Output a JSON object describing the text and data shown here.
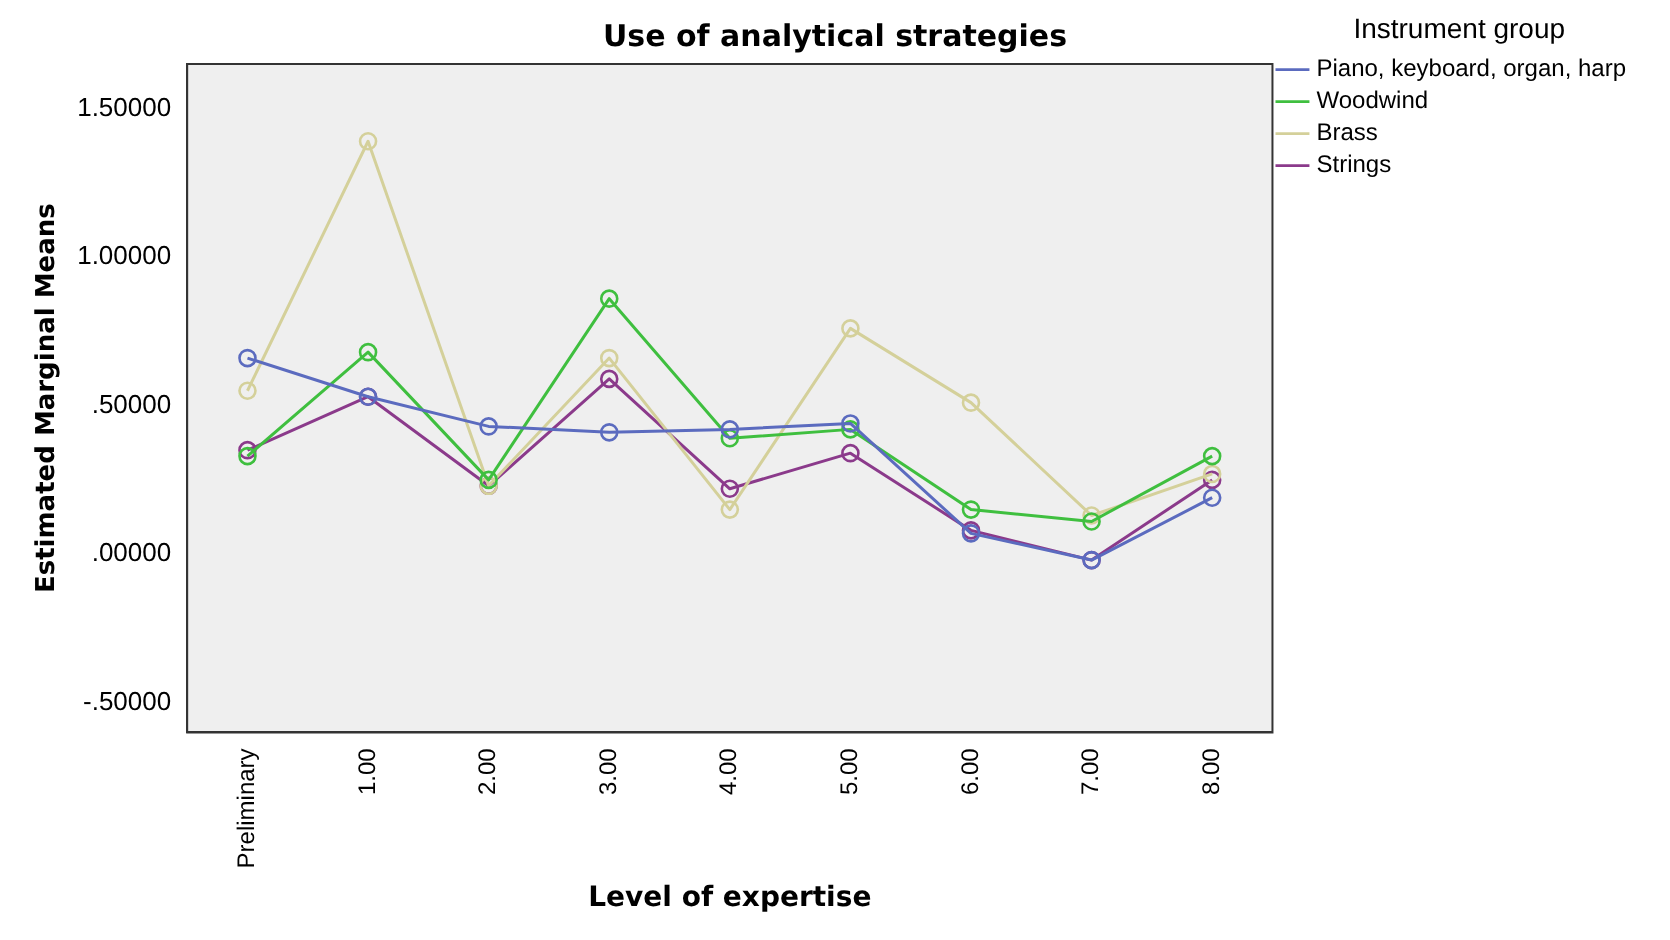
{
  "chart_data": {
    "type": "line",
    "title": "Use of analytical strategies",
    "xlabel": "Level of expertise",
    "ylabel": "Estimated Marginal Means",
    "legend_title": "Instrument group",
    "categories": [
      "Preliminary",
      "1.00",
      "2.00",
      "3.00",
      "4.00",
      "5.00",
      "6.00",
      "7.00",
      "8.00"
    ],
    "series": [
      {
        "name": "Piano, keyboard, organ, harp",
        "color": "#5b6bbf",
        "values": [
          0.66,
          0.53,
          0.43,
          0.41,
          0.42,
          0.44,
          0.07,
          -0.02,
          0.19
        ]
      },
      {
        "name": "Woodwind",
        "color": "#3fbf3f",
        "values": [
          0.33,
          0.68,
          0.25,
          0.86,
          0.39,
          0.42,
          0.15,
          0.11,
          0.33
        ]
      },
      {
        "name": "Brass",
        "color": "#d4d09a",
        "values": [
          0.55,
          1.39,
          0.23,
          0.66,
          0.15,
          0.76,
          0.51,
          0.13,
          0.27
        ]
      },
      {
        "name": "Strings",
        "color": "#8b3a8b",
        "values": [
          0.35,
          0.53,
          0.23,
          0.59,
          0.22,
          0.34,
          0.08,
          -0.02,
          0.25
        ]
      }
    ],
    "ylim": [
      -0.6,
      1.65
    ],
    "yticks": [
      {
        "value": -0.5,
        "label": "-.50000"
      },
      {
        "value": 0,
        "label": ".00000"
      },
      {
        "value": 0.5,
        "label": ".50000"
      },
      {
        "value": 1,
        "label": "1.00000"
      },
      {
        "value": 1.5,
        "label": "1.50000"
      }
    ],
    "grid": false,
    "legend": "right",
    "marker": "circle",
    "line_style": "solid"
  }
}
